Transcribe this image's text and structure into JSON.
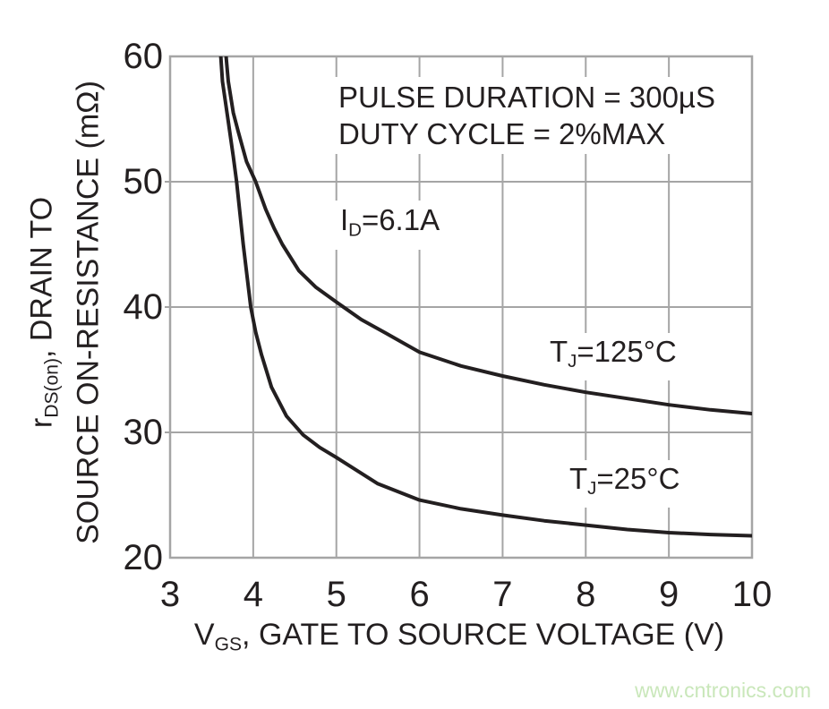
{
  "watermark": "www.cntronics.com",
  "colors": {
    "curve": "#231f20",
    "grid": "#a5a5a5",
    "text": "#231f20",
    "watermark": "#c9e7ba",
    "background": "#ffffff"
  },
  "chart_data": {
    "type": "line",
    "xlabel_parts": {
      "pre": "V",
      "sub": "GS",
      "post": ", GATE TO SOURCE VOLTAGE (V)"
    },
    "ylabel_line1_parts": {
      "pre": "r",
      "sub": "DS(on)",
      "post": ", DRAIN TO"
    },
    "ylabel_line2": "SOURCE ON-RESISTANCE (mΩ)",
    "xlim": [
      3,
      10
    ],
    "ylim": [
      20,
      60
    ],
    "x_ticks": [
      3,
      4,
      5,
      6,
      7,
      8,
      9,
      10
    ],
    "y_ticks": [
      20,
      30,
      40,
      50,
      60
    ],
    "grid": true,
    "legend_position": "inline-labels",
    "annotations": [
      {
        "id": "pulse-duration",
        "text": "PULSE DURATION = 300µS"
      },
      {
        "id": "duty-cycle",
        "text": "DUTY CYCLE = 2%MAX"
      },
      {
        "id": "drain-current",
        "pre": "I",
        "sub": "D",
        "post": "=6.1A"
      }
    ],
    "series": [
      {
        "name": "TJ=125C",
        "label_parts": {
          "pre": "T",
          "sub": "J",
          "post": "=125°C"
        },
        "points": [
          [
            3.66,
            61
          ],
          [
            3.7,
            58
          ],
          [
            3.76,
            55.5
          ],
          [
            3.82,
            54
          ],
          [
            3.92,
            51.6
          ],
          [
            4.03,
            50
          ],
          [
            4.15,
            47.8
          ],
          [
            4.25,
            46.3
          ],
          [
            4.35,
            45
          ],
          [
            4.55,
            42.9
          ],
          [
            4.75,
            41.6
          ],
          [
            5.0,
            40.4
          ],
          [
            5.3,
            39.0
          ],
          [
            5.6,
            37.9
          ],
          [
            6.0,
            36.4
          ],
          [
            6.5,
            35.3
          ],
          [
            7.0,
            34.5
          ],
          [
            7.5,
            33.8
          ],
          [
            8.0,
            33.2
          ],
          [
            8.5,
            32.7
          ],
          [
            9.0,
            32.2
          ],
          [
            9.5,
            31.8
          ],
          [
            10.0,
            31.5
          ]
        ]
      },
      {
        "name": "TJ=25C",
        "label_parts": {
          "pre": "T",
          "sub": "J",
          "post": "=25°C"
        },
        "points": [
          [
            3.6,
            61
          ],
          [
            3.63,
            58
          ],
          [
            3.7,
            54.8
          ],
          [
            3.76,
            52
          ],
          [
            3.8,
            50
          ],
          [
            3.84,
            47.5
          ],
          [
            3.88,
            45
          ],
          [
            3.97,
            40
          ],
          [
            4.03,
            38
          ],
          [
            4.1,
            36.2
          ],
          [
            4.22,
            33.6
          ],
          [
            4.4,
            31.3
          ],
          [
            4.6,
            29.8
          ],
          [
            4.8,
            28.8
          ],
          [
            5.0,
            28.0
          ],
          [
            5.5,
            25.9
          ],
          [
            6.0,
            24.6
          ],
          [
            6.5,
            23.9
          ],
          [
            7.0,
            23.4
          ],
          [
            7.5,
            22.95
          ],
          [
            8.0,
            22.6
          ],
          [
            8.5,
            22.25
          ],
          [
            9.0,
            22.0
          ],
          [
            9.5,
            21.85
          ],
          [
            10.0,
            21.75
          ]
        ]
      }
    ]
  }
}
